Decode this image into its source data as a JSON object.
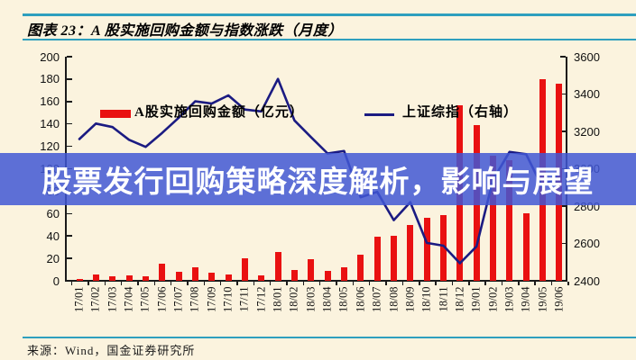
{
  "title": "图表 23：A 股实施回购金额与指数涨跌（月度）",
  "watermark_text": "股票发行回购策略深度解析，影响与展望",
  "source": "来源：Wind，国金证券研究所",
  "colors": {
    "background": "#FBF3DE",
    "rule_teal": "#2E9FBE",
    "bar_red": "#E91111",
    "line_navy": "#1B1B82",
    "watermark_band": "rgba(65,87,213,0.85)",
    "watermark_text": "#FFFFFF"
  },
  "chart_data": {
    "type": "bar+line",
    "title": "图表 23：A 股实施回购金额与指数涨跌（月度）",
    "legend_position": "top",
    "grid": false,
    "categories": [
      "17/01",
      "17/02",
      "17/03",
      "17/04",
      "17/05",
      "17/06",
      "17/07",
      "17/08",
      "17/09",
      "17/10",
      "17/11",
      "17/12",
      "18/01",
      "18/02",
      "18/03",
      "18/04",
      "18/05",
      "18/06",
      "18/07",
      "18/08",
      "18/09",
      "18/10",
      "18/11",
      "18/12",
      "19/01",
      "19/02",
      "19/03",
      "19/04",
      "19/05",
      "19/06"
    ],
    "series": [
      {
        "name": "A股实施回购金额（亿元）",
        "type": "bar",
        "axis": "left",
        "color": "#E91111",
        "values": [
          2,
          6,
          4,
          5,
          4,
          15,
          8,
          12,
          7,
          6,
          20,
          5,
          26,
          10,
          19,
          9,
          12,
          23,
          39,
          40,
          50,
          56,
          59,
          157,
          139,
          112,
          108,
          60,
          180,
          176
        ]
      },
      {
        "name": "上证综指（右轴）",
        "type": "line",
        "axis": "right",
        "color": "#1B1B82",
        "values": [
          3159,
          3242,
          3223,
          3155,
          3117,
          3192,
          3273,
          3361,
          3349,
          3393,
          3317,
          3307,
          3481,
          3259,
          3169,
          3082,
          3095,
          2847,
          2876,
          2725,
          2821,
          2603,
          2588,
          2494,
          2584,
          2941,
          3090,
          3078,
          2898,
          2979
        ]
      }
    ],
    "left_axis": {
      "min": 0,
      "max": 200,
      "step": 20,
      "ticks": [
        "200",
        "180",
        "160",
        "140",
        "120",
        "100",
        "80",
        "60",
        "40",
        "20",
        "0"
      ]
    },
    "right_axis": {
      "min": 2400,
      "max": 3600,
      "step": 200,
      "ticks": [
        "3600",
        "3400",
        "3200",
        "3000",
        "2800",
        "2600",
        "2400"
      ]
    }
  }
}
